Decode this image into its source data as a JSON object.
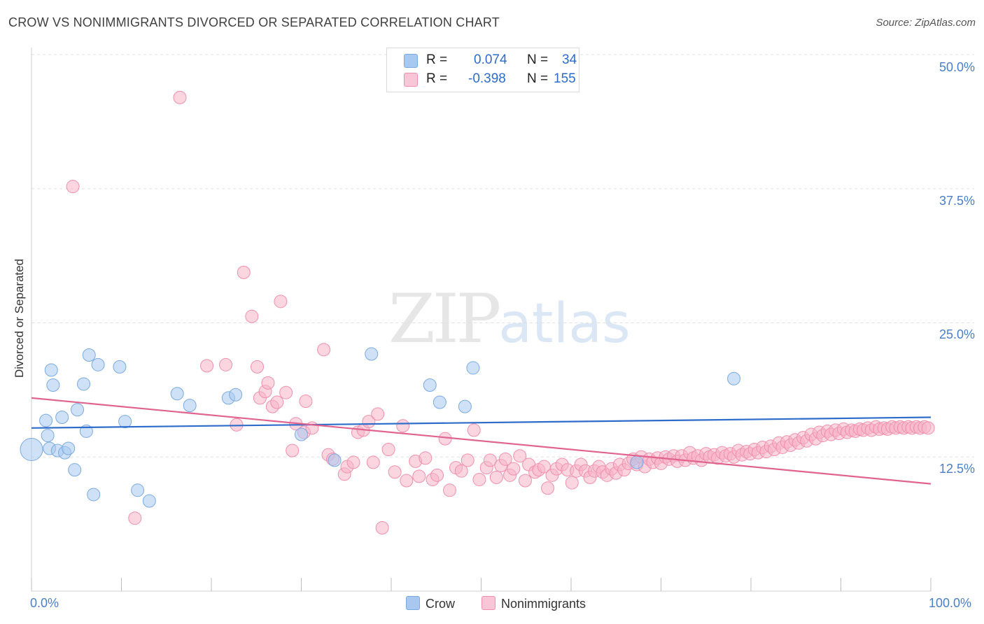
{
  "header": {
    "title": "CROW VS NONIMMIGRANTS DIVORCED OR SEPARATED CORRELATION CHART",
    "source": "Source: ZipAtlas.com"
  },
  "watermark": {
    "zip": "ZIP",
    "atlas": "atlas"
  },
  "legend": {
    "rows": [
      {
        "r_label": "R =",
        "r_value": "0.074",
        "n_label": "N =",
        "n_value": "34",
        "color": "#a8c8f0"
      },
      {
        "r_label": "R =",
        "r_value": "-0.398",
        "n_label": "N =",
        "n_value": "155",
        "color": "#f8b4c8"
      }
    ]
  },
  "bottom_legend": [
    {
      "name": "Crow",
      "color": "#a8c8f0"
    },
    {
      "name": "Nonimmigrants",
      "color": "#f8b4c8"
    }
  ],
  "chart_data": {
    "type": "scatter",
    "title": "CROW VS NONIMMIGRANTS DIVORCED OR SEPARATED CORRELATION CHART",
    "xlabel": "",
    "ylabel": "Divorced or Separated",
    "xlim": [
      0,
      100
    ],
    "ylim": [
      0,
      50
    ],
    "x_tick_labels": [
      "0.0%",
      "100.0%"
    ],
    "y_ticks": [
      12.5,
      25.0,
      37.5,
      50.0
    ],
    "y_tick_labels": [
      "12.5%",
      "25.0%",
      "37.5%",
      "50.0%"
    ],
    "grid": true,
    "legend_position": "top-center",
    "series": [
      {
        "name": "Crow",
        "color": "#a8c8f0",
        "stroke": "#7aaae0",
        "trend_color": "#2e6cc9",
        "trend": {
          "x": [
            0,
            100
          ],
          "y": [
            15.2,
            16.2
          ]
        },
        "points": [
          [
            0.0,
            13.2
          ],
          [
            1.6,
            15.9
          ],
          [
            1.8,
            14.5
          ],
          [
            2.0,
            13.3
          ],
          [
            2.2,
            20.6
          ],
          [
            2.4,
            19.2
          ],
          [
            2.9,
            13.1
          ],
          [
            3.4,
            16.2
          ],
          [
            3.7,
            12.9
          ],
          [
            4.1,
            13.3
          ],
          [
            4.8,
            11.3
          ],
          [
            5.1,
            16.9
          ],
          [
            5.8,
            19.3
          ],
          [
            6.1,
            14.9
          ],
          [
            6.4,
            22.0
          ],
          [
            6.9,
            9.0
          ],
          [
            7.4,
            21.1
          ],
          [
            9.8,
            20.9
          ],
          [
            10.4,
            15.8
          ],
          [
            11.8,
            9.4
          ],
          [
            13.1,
            8.4
          ],
          [
            16.2,
            18.4
          ],
          [
            17.6,
            17.3
          ],
          [
            21.9,
            18.0
          ],
          [
            22.7,
            18.3
          ],
          [
            30.0,
            14.6
          ],
          [
            33.7,
            12.2
          ],
          [
            37.8,
            22.1
          ],
          [
            44.3,
            19.2
          ],
          [
            45.4,
            17.6
          ],
          [
            48.2,
            17.2
          ],
          [
            49.1,
            20.8
          ],
          [
            67.3,
            12.0
          ],
          [
            78.1,
            19.8
          ]
        ]
      },
      {
        "name": "Nonimmigrants",
        "color": "#f8b4c8",
        "stroke": "#ef8fad",
        "trend_color": "#e0648f",
        "trend": {
          "x": [
            0,
            100
          ],
          "y": [
            18.0,
            10.0
          ]
        },
        "points": [
          [
            4.6,
            37.7
          ],
          [
            11.5,
            6.8
          ],
          [
            16.5,
            46.0
          ],
          [
            19.5,
            21.0
          ],
          [
            21.6,
            21.1
          ],
          [
            22.8,
            15.5
          ],
          [
            23.6,
            29.7
          ],
          [
            24.5,
            25.6
          ],
          [
            25.1,
            20.9
          ],
          [
            25.4,
            18.0
          ],
          [
            26.0,
            18.6
          ],
          [
            26.3,
            19.4
          ],
          [
            26.8,
            17.2
          ],
          [
            27.3,
            17.6
          ],
          [
            27.7,
            27.0
          ],
          [
            28.3,
            18.5
          ],
          [
            29.0,
            13.1
          ],
          [
            29.4,
            15.6
          ],
          [
            30.3,
            14.8
          ],
          [
            30.5,
            17.7
          ],
          [
            31.2,
            15.2
          ],
          [
            32.5,
            22.5
          ],
          [
            33.0,
            12.7
          ],
          [
            33.5,
            12.3
          ],
          [
            34.8,
            10.9
          ],
          [
            35.1,
            11.6
          ],
          [
            35.8,
            12.0
          ],
          [
            36.3,
            14.8
          ],
          [
            36.9,
            15.0
          ],
          [
            37.5,
            15.8
          ],
          [
            38.0,
            12.0
          ],
          [
            38.5,
            16.5
          ],
          [
            39.0,
            5.9
          ],
          [
            39.7,
            13.2
          ],
          [
            40.4,
            11.1
          ],
          [
            41.3,
            15.4
          ],
          [
            41.7,
            10.3
          ],
          [
            42.7,
            12.1
          ],
          [
            43.1,
            10.7
          ],
          [
            43.8,
            12.4
          ],
          [
            44.6,
            10.4
          ],
          [
            45.1,
            10.8
          ],
          [
            46.0,
            14.2
          ],
          [
            46.5,
            9.4
          ],
          [
            47.2,
            11.5
          ],
          [
            47.8,
            11.2
          ],
          [
            48.5,
            12.2
          ],
          [
            49.2,
            15.0
          ],
          [
            49.8,
            10.4
          ],
          [
            50.6,
            11.5
          ],
          [
            51.0,
            12.2
          ],
          [
            51.7,
            10.6
          ],
          [
            52.2,
            11.7
          ],
          [
            52.7,
            12.3
          ],
          [
            53.2,
            10.8
          ],
          [
            53.6,
            11.4
          ],
          [
            54.3,
            12.6
          ],
          [
            54.9,
            10.3
          ],
          [
            55.3,
            11.8
          ],
          [
            56.0,
            11.1
          ],
          [
            56.4,
            11.3
          ],
          [
            57.0,
            11.6
          ],
          [
            57.4,
            9.6
          ],
          [
            57.9,
            10.8
          ],
          [
            58.4,
            11.4
          ],
          [
            59.0,
            11.8
          ],
          [
            59.6,
            11.3
          ],
          [
            60.1,
            10.1
          ],
          [
            60.6,
            11.2
          ],
          [
            61.1,
            11.8
          ],
          [
            61.6,
            11.2
          ],
          [
            62.1,
            10.6
          ],
          [
            62.6,
            11.2
          ],
          [
            63.1,
            11.6
          ],
          [
            63.5,
            11.1
          ],
          [
            64.0,
            10.8
          ],
          [
            64.5,
            11.4
          ],
          [
            65.0,
            11.0
          ],
          [
            65.4,
            11.8
          ],
          [
            65.9,
            11.3
          ],
          [
            66.4,
            11.9
          ],
          [
            66.9,
            12.3
          ],
          [
            67.3,
            11.8
          ],
          [
            67.8,
            12.5
          ],
          [
            68.2,
            11.6
          ],
          [
            68.7,
            12.3
          ],
          [
            69.1,
            12.0
          ],
          [
            69.6,
            12.4
          ],
          [
            70.0,
            11.9
          ],
          [
            70.5,
            12.5
          ],
          [
            70.9,
            12.3
          ],
          [
            71.4,
            12.6
          ],
          [
            71.8,
            12.1
          ],
          [
            72.3,
            12.6
          ],
          [
            72.7,
            12.2
          ],
          [
            73.2,
            12.9
          ],
          [
            73.6,
            12.4
          ],
          [
            74.1,
            12.6
          ],
          [
            74.5,
            12.2
          ],
          [
            75.0,
            12.8
          ],
          [
            75.4,
            12.5
          ],
          [
            75.9,
            12.7
          ],
          [
            76.3,
            12.4
          ],
          [
            76.8,
            12.9
          ],
          [
            77.2,
            12.6
          ],
          [
            77.7,
            12.8
          ],
          [
            78.1,
            12.5
          ],
          [
            78.6,
            13.1
          ],
          [
            79.0,
            12.7
          ],
          [
            79.5,
            13.0
          ],
          [
            79.9,
            12.8
          ],
          [
            80.4,
            13.2
          ],
          [
            80.8,
            12.9
          ],
          [
            81.3,
            13.4
          ],
          [
            81.7,
            13.0
          ],
          [
            82.2,
            13.5
          ],
          [
            82.6,
            13.2
          ],
          [
            83.1,
            13.8
          ],
          [
            83.5,
            13.4
          ],
          [
            84.0,
            13.9
          ],
          [
            84.4,
            13.6
          ],
          [
            84.9,
            14.1
          ],
          [
            85.3,
            13.8
          ],
          [
            85.8,
            14.3
          ],
          [
            86.2,
            14.0
          ],
          [
            86.7,
            14.6
          ],
          [
            87.2,
            14.2
          ],
          [
            87.6,
            14.8
          ],
          [
            88.0,
            14.5
          ],
          [
            88.5,
            14.9
          ],
          [
            88.9,
            14.6
          ],
          [
            89.4,
            15.0
          ],
          [
            89.8,
            14.7
          ],
          [
            90.3,
            15.1
          ],
          [
            90.7,
            14.8
          ],
          [
            91.2,
            15.0
          ],
          [
            91.6,
            14.9
          ],
          [
            92.1,
            15.1
          ],
          [
            92.5,
            15.0
          ],
          [
            93.0,
            15.2
          ],
          [
            93.4,
            15.0
          ],
          [
            93.9,
            15.3
          ],
          [
            94.3,
            15.1
          ],
          [
            94.8,
            15.2
          ],
          [
            95.2,
            15.1
          ],
          [
            95.7,
            15.3
          ],
          [
            96.1,
            15.2
          ],
          [
            96.6,
            15.3
          ],
          [
            97.0,
            15.2
          ],
          [
            97.5,
            15.3
          ],
          [
            97.9,
            15.2
          ],
          [
            98.4,
            15.3
          ],
          [
            98.8,
            15.2
          ],
          [
            99.3,
            15.3
          ],
          [
            99.7,
            15.2
          ]
        ]
      }
    ]
  }
}
